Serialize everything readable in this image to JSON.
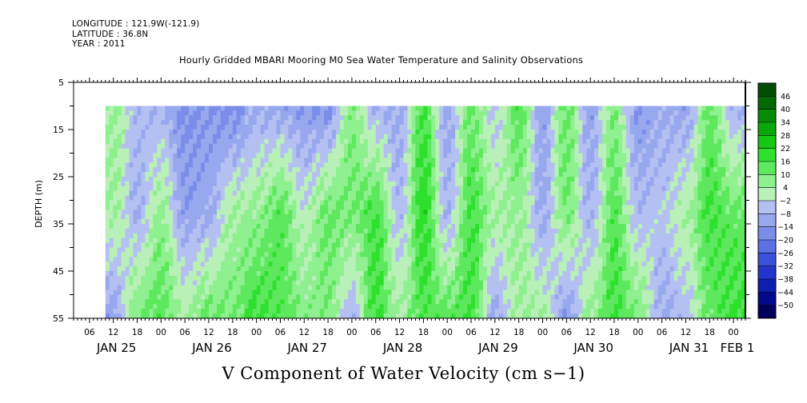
{
  "header": {
    "longitude": "LONGITUDE : 121.9W(-121.9)",
    "latitude": "LATITUDE : 36.8N",
    "year": "YEAR : 2011"
  },
  "chart_data": {
    "type": "heatmap",
    "title": "Hourly Gridded MBARI Mooring M0 Sea Water Temperature and Salinity Observations",
    "xlabel": "",
    "ylabel": "DEPTH (m)",
    "quantity_label": "V Component of Water Velocity (cm s−1)",
    "y_reversed": true,
    "ylim": [
      5,
      55
    ],
    "yticks": [
      "5",
      "15",
      "25",
      "35",
      "45",
      "55"
    ],
    "xlim_hours": [
      "2011-01-25T02:00",
      "2011-02-01T03:00"
    ],
    "data_start": "2011-01-25T10:00",
    "data_end": "2011-02-01T03:00",
    "depth_range_data": [
      10,
      55
    ],
    "hour_ticks": [
      "06",
      "12",
      "18",
      "00",
      "06",
      "12",
      "18",
      "00",
      "06",
      "12",
      "18",
      "00",
      "06",
      "12",
      "18",
      "00",
      "06",
      "12",
      "18",
      "00",
      "06",
      "12",
      "18",
      "00",
      "06",
      "12",
      "18",
      "00"
    ],
    "day_labels": [
      "JAN 25",
      "JAN 26",
      "JAN 27",
      "JAN 28",
      "JAN 29",
      "JAN 30",
      "JAN 31",
      "FEB  1"
    ],
    "colorbar": {
      "levels": [
        -50,
        -44,
        -38,
        -32,
        -26,
        -20,
        -14,
        -8,
        -2,
        4,
        10,
        16,
        22,
        28,
        34,
        40,
        46
      ],
      "labels": [
        "46",
        "40",
        "34",
        "28",
        "22",
        "16",
        "10",
        "4",
        "−2",
        "−8",
        "−14",
        "−20",
        "−26",
        "−32",
        "−38",
        "−44",
        "−50"
      ],
      "colors": [
        "#00005e",
        "#000a8a",
        "#0d1fb0",
        "#2336cc",
        "#3a52db",
        "#5a70e3",
        "#7a8de9",
        "#98a8ee",
        "#b5c0f2",
        "#b8f0b8",
        "#8ef08e",
        "#5ee85e",
        "#2fe02f",
        "#14c814",
        "#0aa80a",
        "#078a07",
        "#056905",
        "#034d03"
      ]
    },
    "series": [
      {
        "day_hour": "Jan 25 12",
        "surface_mid_bottom": [
          6,
          4,
          -12
        ]
      },
      {
        "day_hour": "Jan 25 18",
        "surface_mid_bottom": [
          -6,
          -8,
          10
        ]
      },
      {
        "day_hour": "Jan 26 00",
        "surface_mid_bottom": [
          -8,
          6,
          14
        ]
      },
      {
        "day_hour": "Jan 26 06",
        "surface_mid_bottom": [
          -16,
          -12,
          4
        ]
      },
      {
        "day_hour": "Jan 26 12",
        "surface_mid_bottom": [
          -14,
          -10,
          12
        ]
      },
      {
        "day_hour": "Jan 26 18",
        "surface_mid_bottom": [
          -18,
          4,
          10
        ]
      },
      {
        "day_hour": "Jan 27 00",
        "surface_mid_bottom": [
          -10,
          6,
          18
        ]
      },
      {
        "day_hour": "Jan 27 06",
        "surface_mid_bottom": [
          -12,
          14,
          14
        ]
      },
      {
        "day_hour": "Jan 27 12",
        "surface_mid_bottom": [
          -14,
          0,
          8
        ]
      },
      {
        "day_hour": "Jan 27 18",
        "surface_mid_bottom": [
          -16,
          12,
          8
        ]
      },
      {
        "day_hour": "Jan 28 00",
        "surface_mid_bottom": [
          8,
          10,
          -8
        ]
      },
      {
        "day_hour": "Jan 28 06",
        "surface_mid_bottom": [
          -8,
          16,
          18
        ]
      },
      {
        "day_hour": "Jan 28 12",
        "surface_mid_bottom": [
          -10,
          -6,
          4
        ]
      },
      {
        "day_hour": "Jan 28 18",
        "surface_mid_bottom": [
          16,
          20,
          14
        ]
      },
      {
        "day_hour": "Jan 29 00",
        "surface_mid_bottom": [
          -10,
          -8,
          14
        ]
      },
      {
        "day_hour": "Jan 29 06",
        "surface_mid_bottom": [
          10,
          16,
          16
        ]
      },
      {
        "day_hour": "Jan 29 12",
        "surface_mid_bottom": [
          -4,
          4,
          -10
        ]
      },
      {
        "day_hour": "Jan 29 18",
        "surface_mid_bottom": [
          14,
          6,
          4
        ]
      },
      {
        "day_hour": "Jan 30 00",
        "surface_mid_bottom": [
          -12,
          -10,
          4
        ]
      },
      {
        "day_hour": "Jan 30 06",
        "surface_mid_bottom": [
          12,
          10,
          -14
        ]
      },
      {
        "day_hour": "Jan 30 12",
        "surface_mid_bottom": [
          -12,
          -8,
          6
        ]
      },
      {
        "day_hour": "Jan 30 18",
        "surface_mid_bottom": [
          8,
          14,
          16
        ]
      },
      {
        "day_hour": "Jan 31 00",
        "surface_mid_bottom": [
          -14,
          -6,
          10
        ]
      },
      {
        "day_hour": "Jan 31 06",
        "surface_mid_bottom": [
          -10,
          -4,
          -10
        ]
      },
      {
        "day_hour": "Jan 31 12",
        "surface_mid_bottom": [
          -12,
          4,
          -6
        ]
      },
      {
        "day_hour": "Jan 31 18",
        "surface_mid_bottom": [
          12,
          16,
          12
        ]
      },
      {
        "day_hour": "Feb 01 00",
        "surface_mid_bottom": [
          -8,
          12,
          18
        ]
      }
    ]
  }
}
